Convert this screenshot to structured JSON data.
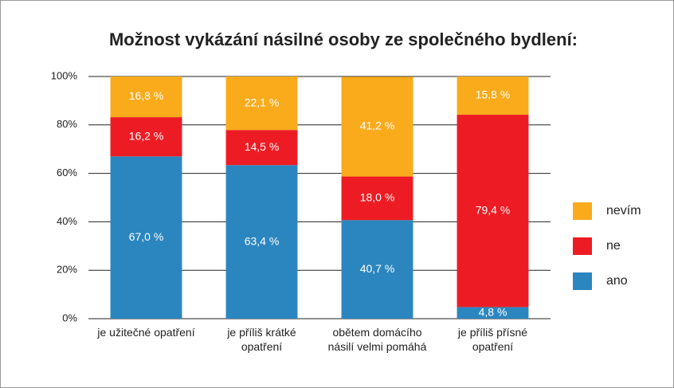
{
  "chart_data": {
    "type": "stacked_bar",
    "title": "Možnost vykázání násilné osoby ze společného bydlení:",
    "categories": [
      "je užitečné opatření",
      "je příliš krátké opatření",
      "obětem domácího násilí velmi pomáhá",
      "je příliš přísné opatření"
    ],
    "series": [
      {
        "name": "ano",
        "color": "#2b86bf",
        "values": [
          67.0,
          63.4,
          40.7,
          4.8
        ],
        "value_labels": [
          "67,0 %",
          "63,4 %",
          "40,7 %",
          "4,8 %"
        ]
      },
      {
        "name": "ne",
        "color": "#ed1c24",
        "values": [
          16.2,
          14.5,
          18.0,
          79.4
        ],
        "value_labels": [
          "16,2 %",
          "14,5 %",
          "18,0 %",
          "79,4 %"
        ]
      },
      {
        "name": "nevím",
        "color": "#f9ab1c",
        "values": [
          16.8,
          22.1,
          41.2,
          15.8
        ],
        "value_labels": [
          "16,8 %",
          "22,1 %",
          "41,2 %",
          "15,8 %"
        ]
      }
    ],
    "ylim": [
      0,
      100
    ],
    "yticks": [
      {
        "value": 0,
        "label": "0%"
      },
      {
        "value": 20,
        "label": "20%"
      },
      {
        "value": 40,
        "label": "40%"
      },
      {
        "value": 60,
        "label": "60%"
      },
      {
        "value": 80,
        "label": "80%"
      },
      {
        "value": 100,
        "label": "100%"
      }
    ],
    "grid": true,
    "legend": "right"
  }
}
